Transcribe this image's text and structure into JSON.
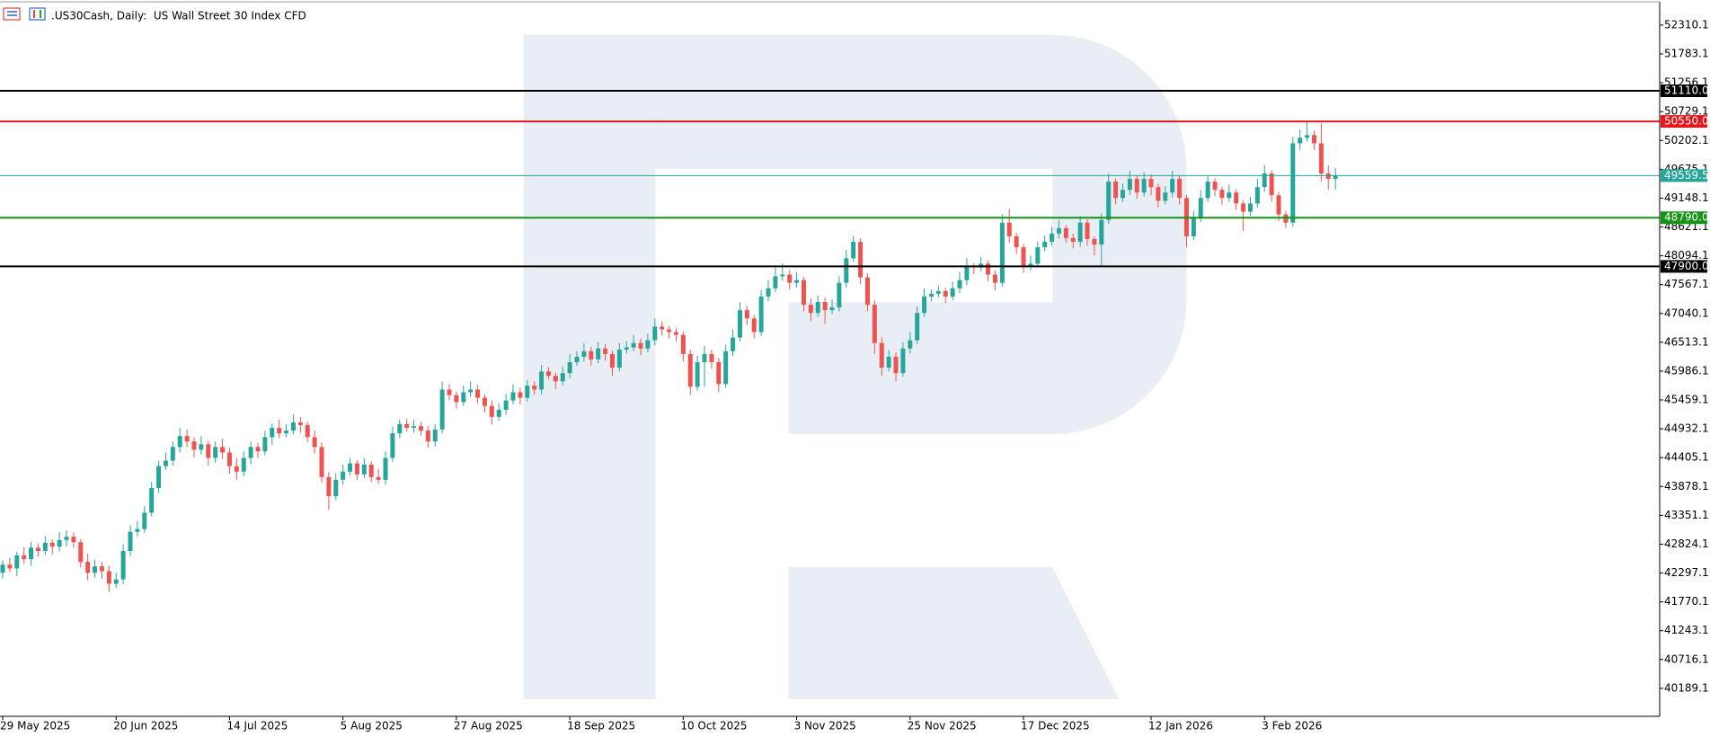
{
  "chart_data": {
    "type": "candlestick",
    "title": ".US30Cash, Daily:  US Wall Street 30 Index CFD",
    "up_color": "#26a69a",
    "down_color": "#ef5350",
    "ylim": [
      39678,
      52736
    ],
    "yticks": [
      52310.1,
      51783.1,
      51256.1,
      50729.1,
      50202.1,
      49675.1,
      49148.1,
      48621.1,
      48094.1,
      47567.1,
      47040.1,
      46513.1,
      45986.1,
      45459.1,
      44932.1,
      44405.1,
      43878.1,
      43351.1,
      42824.1,
      42297.1,
      41770.1,
      41243.1,
      40716.1,
      40189.1
    ],
    "levels": [
      {
        "value": 51110,
        "label": "51110.0",
        "color": "#000000"
      },
      {
        "value": 50550,
        "label": "50550.0",
        "color": "#e8141b"
      },
      {
        "value": 49559.5,
        "color": "#26a69a"
      },
      {
        "value": 48790,
        "label": "48790.0",
        "color": "#149414"
      },
      {
        "value": 47900,
        "label": "47900.0",
        "color": "#000000"
      }
    ],
    "categories": [
      "29 May 2025",
      null,
      null,
      null,
      null,
      null,
      null,
      null,
      null,
      null,
      null,
      null,
      null,
      null,
      null,
      null,
      "20 Jun 2025",
      null,
      null,
      null,
      null,
      null,
      null,
      null,
      null,
      null,
      null,
      null,
      null,
      null,
      null,
      null,
      "14 Jul 2025",
      null,
      null,
      null,
      null,
      null,
      null,
      null,
      null,
      null,
      null,
      null,
      null,
      null,
      null,
      null,
      "5 Aug 2025",
      null,
      null,
      null,
      null,
      null,
      null,
      null,
      null,
      null,
      null,
      null,
      null,
      null,
      null,
      null,
      "27 Aug 2025",
      null,
      null,
      null,
      null,
      null,
      null,
      null,
      null,
      null,
      null,
      null,
      null,
      null,
      null,
      null,
      "18 Sep 2025",
      null,
      null,
      null,
      null,
      null,
      null,
      null,
      null,
      null,
      null,
      null,
      null,
      null,
      null,
      null,
      "10 Oct 2025",
      null,
      null,
      null,
      null,
      null,
      null,
      null,
      null,
      null,
      null,
      null,
      null,
      null,
      null,
      null,
      "3 Nov 2025",
      null,
      null,
      null,
      null,
      null,
      null,
      null,
      null,
      null,
      null,
      null,
      null,
      null,
      null,
      null,
      "25 Nov 2025",
      null,
      null,
      null,
      null,
      null,
      null,
      null,
      null,
      null,
      null,
      null,
      null,
      null,
      null,
      null,
      "17 Dec 2025",
      null,
      null,
      null,
      null,
      null,
      null,
      null,
      null,
      null,
      null,
      null,
      null,
      null,
      null,
      null,
      null,
      null,
      "12 Jan 2026",
      null,
      null,
      null,
      null,
      null,
      null,
      null,
      null,
      null,
      null,
      null,
      null,
      null,
      null,
      null,
      "3 Feb 2026",
      null,
      null,
      null,
      null,
      null,
      null,
      null,
      null,
      null,
      null
    ],
    "ohlc": [
      [
        42300,
        42530,
        42200,
        42450
      ],
      [
        42450,
        42570,
        42310,
        42380
      ],
      [
        42380,
        42680,
        42240,
        42620
      ],
      [
        42620,
        42770,
        42460,
        42550
      ],
      [
        42550,
        42860,
        42430,
        42760
      ],
      [
        42760,
        42840,
        42600,
        42700
      ],
      [
        42700,
        42970,
        42630,
        42850
      ],
      [
        42850,
        42910,
        42640,
        42780
      ],
      [
        42780,
        43050,
        42690,
        42900
      ],
      [
        42900,
        43080,
        42780,
        42960
      ],
      [
        42960,
        43040,
        42760,
        42860
      ],
      [
        42860,
        42920,
        42400,
        42500
      ],
      [
        42500,
        42650,
        42160,
        42300
      ],
      [
        42300,
        42540,
        42210,
        42420
      ],
      [
        42420,
        42500,
        42190,
        42330
      ],
      [
        42330,
        42430,
        41950,
        42100
      ],
      [
        42100,
        42300,
        42030,
        42180
      ],
      [
        42180,
        42820,
        42090,
        42700
      ],
      [
        42700,
        43170,
        42600,
        43050
      ],
      [
        43050,
        43250,
        42960,
        43100
      ],
      [
        43100,
        43520,
        43030,
        43400
      ],
      [
        43400,
        43960,
        43330,
        43850
      ],
      [
        43850,
        44350,
        43760,
        44250
      ],
      [
        44250,
        44500,
        44180,
        44350
      ],
      [
        44350,
        44700,
        44260,
        44600
      ],
      [
        44600,
        44950,
        44500,
        44800
      ],
      [
        44800,
        44920,
        44600,
        44700
      ],
      [
        44700,
        44780,
        44410,
        44550
      ],
      [
        44550,
        44800,
        44460,
        44650
      ],
      [
        44650,
        44710,
        44260,
        44400
      ],
      [
        44400,
        44700,
        44310,
        44600
      ],
      [
        44600,
        44750,
        44380,
        44500
      ],
      [
        44500,
        44580,
        44110,
        44250
      ],
      [
        44250,
        44400,
        44000,
        44150
      ],
      [
        44150,
        44520,
        44060,
        44400
      ],
      [
        44400,
        44700,
        44280,
        44600
      ],
      [
        44600,
        44680,
        44400,
        44520
      ],
      [
        44520,
        44900,
        44450,
        44780
      ],
      [
        44780,
        45030,
        44640,
        44950
      ],
      [
        44950,
        45100,
        44760,
        44850
      ],
      [
        44850,
        45020,
        44780,
        44900
      ],
      [
        44900,
        45200,
        44830,
        45050
      ],
      [
        45050,
        45150,
        44860,
        45000
      ],
      [
        45000,
        45060,
        44690,
        44780
      ],
      [
        44780,
        44900,
        44480,
        44600
      ],
      [
        44600,
        44680,
        43950,
        44050
      ],
      [
        44050,
        44150,
        43450,
        43700
      ],
      [
        43700,
        44120,
        43630,
        44000
      ],
      [
        44000,
        44280,
        43910,
        44150
      ],
      [
        44150,
        44400,
        44080,
        44300
      ],
      [
        44300,
        44360,
        44000,
        44100
      ],
      [
        44100,
        44400,
        44030,
        44280
      ],
      [
        44280,
        44340,
        43960,
        44050
      ],
      [
        44050,
        44200,
        43930,
        44000
      ],
      [
        44000,
        44520,
        43910,
        44400
      ],
      [
        44400,
        44970,
        44330,
        44850
      ],
      [
        44850,
        45100,
        44760,
        45020
      ],
      [
        45020,
        45120,
        44880,
        44950
      ],
      [
        44950,
        45100,
        44860,
        44980
      ],
      [
        44980,
        45060,
        44810,
        44900
      ],
      [
        44900,
        44980,
        44580,
        44700
      ],
      [
        44700,
        45020,
        44610,
        44920
      ],
      [
        44920,
        45800,
        44850,
        45650
      ],
      [
        45650,
        45750,
        45450,
        45550
      ],
      [
        45550,
        45610,
        45300,
        45420
      ],
      [
        45420,
        45720,
        45350,
        45600
      ],
      [
        45600,
        45800,
        45510,
        45650
      ],
      [
        45650,
        45730,
        45400,
        45500
      ],
      [
        45500,
        45560,
        45230,
        45350
      ],
      [
        45350,
        45450,
        45010,
        45150
      ],
      [
        45150,
        45400,
        45080,
        45280
      ],
      [
        45280,
        45570,
        45190,
        45450
      ],
      [
        45450,
        45750,
        45380,
        45600
      ],
      [
        45600,
        45680,
        45380,
        45500
      ],
      [
        45500,
        45820,
        45430,
        45720
      ],
      [
        45720,
        45800,
        45560,
        45650
      ],
      [
        45650,
        46100,
        45560,
        45980
      ],
      [
        45980,
        46060,
        45830,
        45900
      ],
      [
        45900,
        45960,
        45660,
        45800
      ],
      [
        45800,
        46070,
        45730,
        45950
      ],
      [
        45950,
        46300,
        45860,
        46150
      ],
      [
        46150,
        46350,
        46080,
        46250
      ],
      [
        46250,
        46500,
        46160,
        46350
      ],
      [
        46350,
        46430,
        46080,
        46200
      ],
      [
        46200,
        46520,
        46130,
        46400
      ],
      [
        46400,
        46480,
        46180,
        46300
      ],
      [
        46300,
        46360,
        45900,
        46050
      ],
      [
        46050,
        46500,
        45980,
        46380
      ],
      [
        46380,
        46540,
        46310,
        46420
      ],
      [
        46420,
        46650,
        46350,
        46500
      ],
      [
        46500,
        46580,
        46280,
        46400
      ],
      [
        46400,
        46670,
        46330,
        46550
      ],
      [
        46550,
        46950,
        46460,
        46800
      ],
      [
        46800,
        46900,
        46640,
        46750
      ],
      [
        46750,
        46810,
        46580,
        46700
      ],
      [
        46700,
        46780,
        46530,
        46650
      ],
      [
        46650,
        46710,
        46160,
        46300
      ],
      [
        46300,
        46380,
        45550,
        45700
      ],
      [
        45700,
        46270,
        45630,
        46150
      ],
      [
        46150,
        46450,
        45700,
        46300
      ],
      [
        46300,
        46380,
        46030,
        46150
      ],
      [
        46150,
        46230,
        45600,
        45750
      ],
      [
        45750,
        46470,
        45680,
        46350
      ],
      [
        46350,
        46750,
        46260,
        46600
      ],
      [
        46600,
        47250,
        46530,
        47100
      ],
      [
        47100,
        47180,
        46830,
        46950
      ],
      [
        46950,
        47010,
        46580,
        46700
      ],
      [
        46700,
        47470,
        46630,
        47350
      ],
      [
        47350,
        47650,
        47260,
        47500
      ],
      [
        47500,
        47920,
        47430,
        47720
      ],
      [
        47720,
        47950,
        47640,
        47750
      ],
      [
        47750,
        47830,
        47480,
        47600
      ],
      [
        47600,
        47790,
        47510,
        47650
      ],
      [
        47650,
        47710,
        47080,
        47200
      ],
      [
        47200,
        47320,
        46900,
        47050
      ],
      [
        47050,
        47370,
        46980,
        47250
      ],
      [
        47250,
        47330,
        46850,
        47100
      ],
      [
        47100,
        47300,
        47030,
        47150
      ],
      [
        47150,
        47720,
        47080,
        47600
      ],
      [
        47600,
        48200,
        47510,
        48050
      ],
      [
        48050,
        48450,
        47980,
        48350
      ],
      [
        48350,
        48410,
        47580,
        47700
      ],
      [
        47700,
        47780,
        47080,
        47200
      ],
      [
        47200,
        47280,
        46300,
        46500
      ],
      [
        46500,
        46600,
        45900,
        46050
      ],
      [
        46050,
        46370,
        45980,
        46250
      ],
      [
        46250,
        46330,
        45800,
        45950
      ],
      [
        45950,
        46520,
        45880,
        46400
      ],
      [
        46400,
        46700,
        46310,
        46550
      ],
      [
        46550,
        47170,
        46480,
        47050
      ],
      [
        47050,
        47500,
        46980,
        47350
      ],
      [
        47350,
        47480,
        47260,
        47400
      ],
      [
        47400,
        47550,
        47330,
        47450
      ],
      [
        47450,
        47510,
        47230,
        47350
      ],
      [
        47350,
        47620,
        47280,
        47500
      ],
      [
        47500,
        47800,
        47410,
        47650
      ],
      [
        47650,
        48050,
        47560,
        47900
      ],
      [
        47900,
        47960,
        47760,
        47880
      ],
      [
        47880,
        48070,
        47810,
        47950
      ],
      [
        47950,
        48010,
        47630,
        47750
      ],
      [
        47750,
        47830,
        47460,
        47600
      ],
      [
        47600,
        48850,
        47530,
        48700
      ],
      [
        48700,
        48950,
        48330,
        48450
      ],
      [
        48450,
        48510,
        48130,
        48250
      ],
      [
        48250,
        48310,
        47780,
        47900
      ],
      [
        47900,
        48100,
        47830,
        47950
      ],
      [
        47950,
        48350,
        47880,
        48250
      ],
      [
        48250,
        48470,
        48180,
        48350
      ],
      [
        48350,
        48620,
        48280,
        48500
      ],
      [
        48500,
        48750,
        48410,
        48600
      ],
      [
        48600,
        48660,
        48330,
        48420
      ],
      [
        48420,
        48500,
        48230,
        48350
      ],
      [
        48350,
        48820,
        48260,
        48700
      ],
      [
        48700,
        48760,
        48280,
        48400
      ],
      [
        48400,
        48450,
        48100,
        48300
      ],
      [
        48300,
        48870,
        47900,
        48750
      ],
      [
        48750,
        49600,
        48680,
        49450
      ],
      [
        49450,
        49510,
        49030,
        49150
      ],
      [
        49150,
        49420,
        49080,
        49300
      ],
      [
        49300,
        49650,
        49210,
        49500
      ],
      [
        49500,
        49560,
        49130,
        49250
      ],
      [
        49250,
        49620,
        49180,
        49500
      ],
      [
        49500,
        49580,
        49200,
        49350
      ],
      [
        49350,
        49410,
        48980,
        49100
      ],
      [
        49100,
        49370,
        49030,
        49250
      ],
      [
        49250,
        49650,
        49160,
        49500
      ],
      [
        49500,
        49560,
        49030,
        49150
      ],
      [
        49150,
        49210,
        48250,
        48450
      ],
      [
        48450,
        48920,
        48380,
        48800
      ],
      [
        48800,
        49300,
        48710,
        49150
      ],
      [
        49150,
        49570,
        49080,
        49450
      ],
      [
        49450,
        49510,
        49180,
        49300
      ],
      [
        49300,
        49360,
        49030,
        49150
      ],
      [
        49150,
        49400,
        49080,
        49250
      ],
      [
        49250,
        49310,
        48930,
        49050
      ],
      [
        49050,
        49110,
        48550,
        48900
      ],
      [
        48900,
        49170,
        48830,
        49050
      ],
      [
        49050,
        49500,
        48980,
        49350
      ],
      [
        49350,
        49750,
        49260,
        49600
      ],
      [
        49600,
        49660,
        49080,
        49200
      ],
      [
        49200,
        49260,
        48730,
        48850
      ],
      [
        48850,
        48910,
        48600,
        48700
      ],
      [
        48700,
        50270,
        48630,
        50150
      ],
      [
        50150,
        50400,
        50030,
        50250
      ],
      [
        50250,
        50550,
        50180,
        50300
      ],
      [
        50300,
        50380,
        50030,
        50150
      ],
      [
        50150,
        50520,
        49450,
        49600
      ],
      [
        49600,
        49750,
        49300,
        49500
      ],
      [
        49500,
        49700,
        49300,
        49559.5
      ]
    ]
  }
}
